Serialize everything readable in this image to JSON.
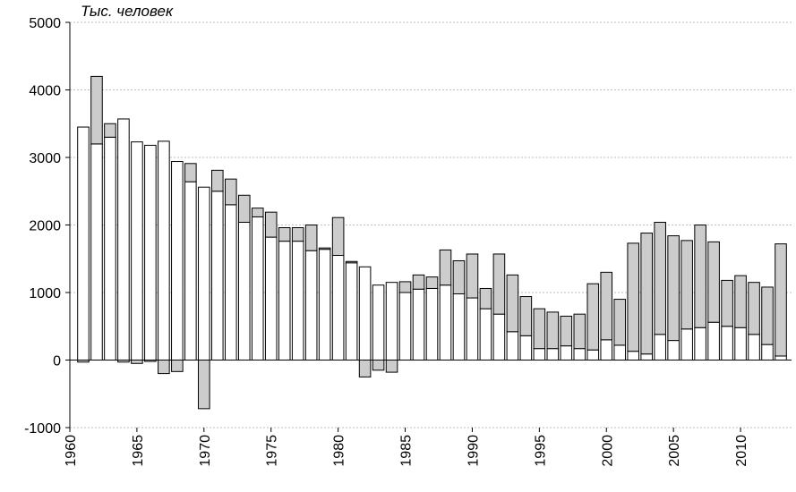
{
  "chart_data": {
    "type": "bar",
    "stacked": true,
    "ylabel": "Тыс. человек",
    "xlabel": "",
    "ylim": [
      -1000,
      5000
    ],
    "yticks": [
      -1000,
      0,
      1000,
      2000,
      3000,
      4000,
      5000
    ],
    "xticks": [
      1960,
      1965,
      1970,
      1975,
      1980,
      1985,
      1990,
      1995,
      2000,
      2005,
      2010
    ],
    "grid": true,
    "legend": "none",
    "colors": {
      "white_series": "#ffffff",
      "gray_series": "#cccccc",
      "outline": "#000000"
    },
    "x": [
      1961,
      1962,
      1963,
      1964,
      1965,
      1966,
      1967,
      1968,
      1969,
      1970,
      1971,
      1972,
      1973,
      1974,
      1975,
      1976,
      1977,
      1978,
      1979,
      1980,
      1981,
      1982,
      1983,
      1984,
      1985,
      1986,
      1987,
      1988,
      1989,
      1990,
      1991,
      1992,
      1993,
      1994,
      1995,
      1996,
      1997,
      1998,
      1999,
      2000,
      2001,
      2002,
      2003,
      2004,
      2005,
      2006,
      2007,
      2008,
      2009,
      2010,
      2011,
      2012,
      2013
    ],
    "series": [
      {
        "values": [
          3450,
          3200,
          3300,
          3570,
          3230,
          3180,
          3240,
          2940,
          2640,
          2560,
          2500,
          2300,
          2040,
          2120,
          1820,
          1760,
          1760,
          1620,
          1640,
          1550,
          1440,
          1380,
          1110,
          1150,
          1000,
          1050,
          1060,
          1110,
          980,
          920,
          760,
          680,
          420,
          360,
          170,
          170,
          210,
          170,
          150,
          300,
          220,
          130,
          90,
          380,
          290,
          460,
          480,
          560,
          500,
          480,
          380,
          230,
          60
        ]
      },
      {
        "values": [
          -30,
          1000,
          200,
          -30,
          -50,
          -20,
          -200,
          -170,
          270,
          -720,
          310,
          380,
          400,
          130,
          370,
          200,
          200,
          380,
          20,
          560,
          20,
          -250,
          -150,
          -180,
          160,
          210,
          170,
          520,
          490,
          650,
          300,
          890,
          840,
          580,
          590,
          540,
          440,
          510,
          980,
          1000,
          680,
          1600,
          1790,
          1660,
          1550,
          1310,
          1520,
          1190,
          680,
          770,
          770,
          850,
          1660
        ]
      }
    ]
  }
}
